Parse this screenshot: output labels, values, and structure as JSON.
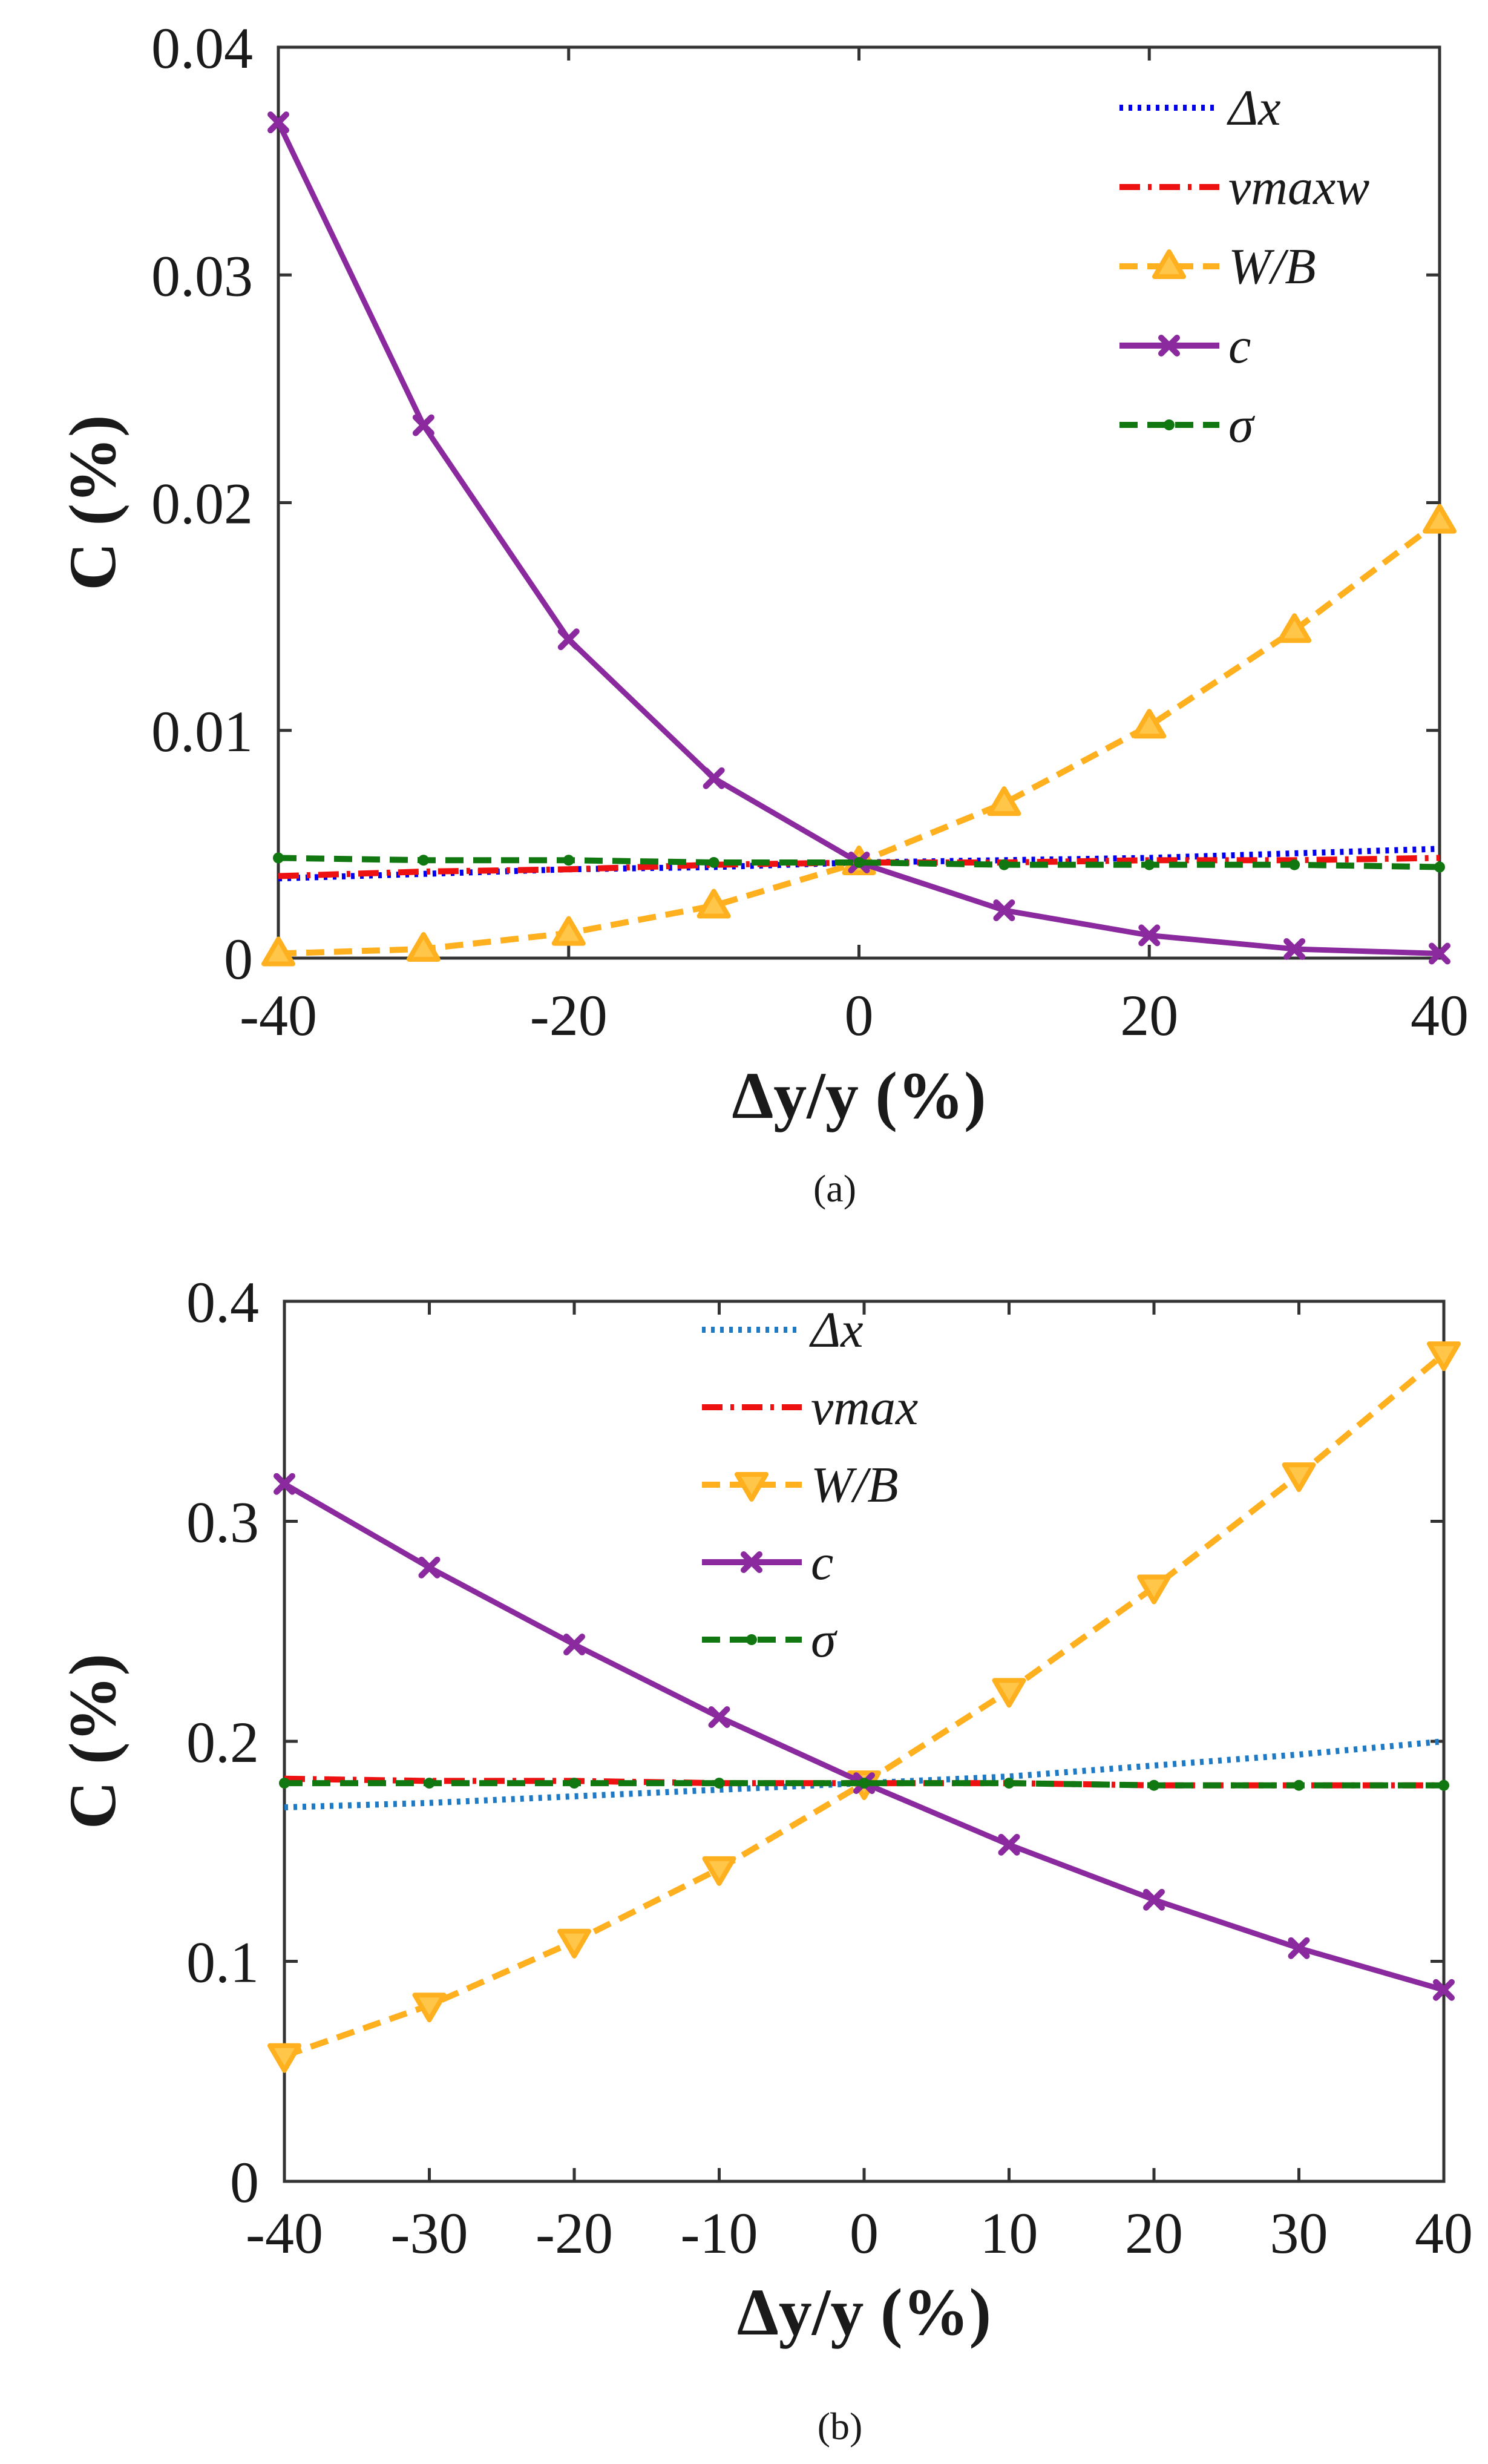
{
  "chart_data": [
    {
      "type": "line",
      "caption": "(a)",
      "xlabel": "Δy/y (%)",
      "ylabel": "C (%)",
      "xlim": [
        -40,
        40
      ],
      "ylim": [
        0,
        0.04
      ],
      "xticks": [
        -40,
        -20,
        0,
        20,
        40
      ],
      "xtick_labels": [
        "-40",
        "-20",
        "0",
        "20",
        "40"
      ],
      "yticks": [
        0,
        0.01,
        0.02,
        0.03,
        0.04
      ],
      "ytick_labels": [
        "0",
        "0.01",
        "0.02",
        "0.03",
        "0.04"
      ],
      "x": [
        -40,
        -30,
        -20,
        -10,
        0,
        10,
        20,
        30,
        40
      ],
      "legend_position": "top-right",
      "grid": false,
      "series": [
        {
          "name": "Δx",
          "color": "#0000ee",
          "style": "dotted",
          "marker": "none",
          "values": [
            0.0035,
            0.0037,
            0.0039,
            0.004,
            0.0042,
            0.0043,
            0.0044,
            0.0046,
            0.0048
          ]
        },
        {
          "name": "vmaxw",
          "color": "#ee1111",
          "style": "dashdot",
          "marker": "none",
          "values": [
            0.0036,
            0.0038,
            0.0039,
            0.0041,
            0.0042,
            0.0042,
            0.0043,
            0.0043,
            0.0044
          ]
        },
        {
          "name": "W/B",
          "color": "#ffb01f",
          "style": "dashed",
          "marker": "triangle-up",
          "values": [
            0.0002,
            0.0004,
            0.0011,
            0.0023,
            0.0042,
            0.0068,
            0.0102,
            0.0144,
            0.0192
          ]
        },
        {
          "name": "c",
          "color": "#8b2a9e",
          "style": "solid",
          "marker": "x",
          "values": [
            0.0367,
            0.0234,
            0.014,
            0.0079,
            0.0042,
            0.0021,
            0.001,
            0.0004,
            0.0002
          ]
        },
        {
          "name": "σ",
          "color": "#117711",
          "style": "dashed",
          "marker": "dot",
          "values": [
            0.0044,
            0.0043,
            0.0043,
            0.0042,
            0.0042,
            0.0041,
            0.0041,
            0.0041,
            0.004
          ]
        }
      ]
    },
    {
      "type": "line",
      "caption": "(b)",
      "xlabel": "Δy/y (%)",
      "ylabel": "C (%)",
      "xlim": [
        -40,
        40
      ],
      "ylim": [
        0,
        0.4
      ],
      "xticks": [
        -40,
        -30,
        -20,
        -10,
        0,
        10,
        20,
        30,
        40
      ],
      "xtick_labels": [
        "-40",
        "-30",
        "-20",
        "-10",
        "0",
        "10",
        "20",
        "30",
        "40"
      ],
      "yticks": [
        0,
        0.1,
        0.2,
        0.3,
        0.4
      ],
      "ytick_labels": [
        "0",
        "0.1",
        "0.2",
        "0.3",
        "0.4"
      ],
      "x": [
        -40,
        -30,
        -20,
        -10,
        0,
        10,
        20,
        30,
        40
      ],
      "legend_position": "top-center",
      "grid": false,
      "series": [
        {
          "name": "Δx",
          "color": "#1e7ac4",
          "style": "dotted",
          "marker": "none",
          "values": [
            0.17,
            0.172,
            0.175,
            0.178,
            0.181,
            0.184,
            0.189,
            0.194,
            0.2
          ]
        },
        {
          "name": "vmax",
          "color": "#ee1111",
          "style": "dashdot",
          "marker": "none",
          "values": [
            0.183,
            0.182,
            0.182,
            0.181,
            0.181,
            0.181,
            0.18,
            0.18,
            0.18
          ]
        },
        {
          "name": "W/B",
          "color": "#ffb01f",
          "style": "dashed",
          "marker": "triangle-down",
          "values": [
            0.057,
            0.08,
            0.109,
            0.142,
            0.181,
            0.223,
            0.27,
            0.321,
            0.376
          ]
        },
        {
          "name": "c",
          "color": "#8b2a9e",
          "style": "solid",
          "marker": "x",
          "values": [
            0.317,
            0.279,
            0.244,
            0.211,
            0.181,
            0.153,
            0.128,
            0.106,
            0.087
          ]
        },
        {
          "name": "σ",
          "color": "#117711",
          "style": "dashed",
          "marker": "dot",
          "values": [
            0.181,
            0.181,
            0.181,
            0.181,
            0.181,
            0.181,
            0.18,
            0.18,
            0.18
          ]
        }
      ]
    }
  ]
}
